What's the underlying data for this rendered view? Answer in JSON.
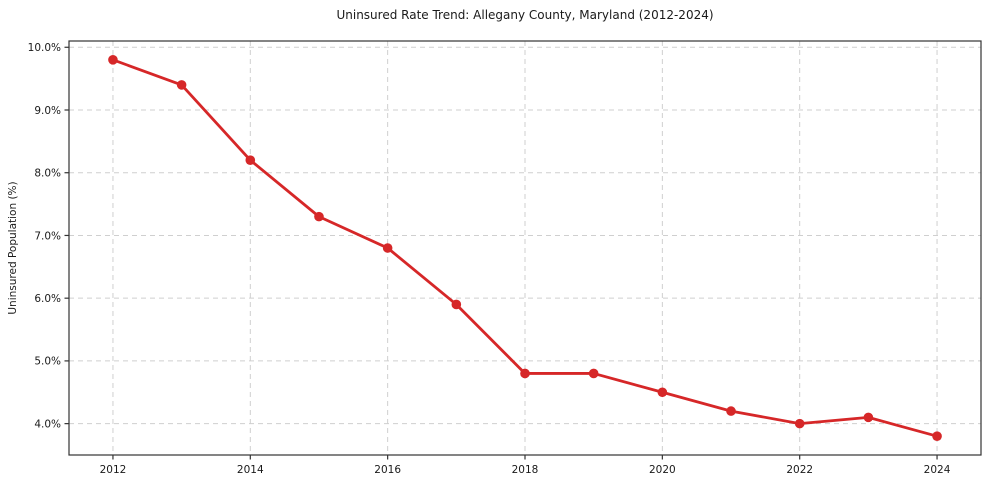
{
  "chart_data": {
    "type": "line",
    "title": "Uninsured Rate Trend: Allegany County, Maryland (2012-2024)",
    "xlabel": "",
    "ylabel": "Uninsured Population (%)",
    "x": [
      2012,
      2013,
      2014,
      2015,
      2016,
      2017,
      2018,
      2019,
      2020,
      2021,
      2022,
      2023,
      2024
    ],
    "values": [
      9.8,
      9.4,
      8.2,
      7.3,
      6.8,
      5.9,
      4.8,
      4.8,
      4.5,
      4.2,
      4.0,
      4.1,
      3.8
    ],
    "line_color": "#d62728",
    "marker": "circle",
    "grid": true,
    "legend_position": "none",
    "xlim": [
      2011.36,
      2024.64
    ],
    "ylim": [
      3.5,
      10.1
    ],
    "xticks": [
      {
        "v": 2012,
        "label": "2012"
      },
      {
        "v": 2014,
        "label": "2014"
      },
      {
        "v": 2016,
        "label": "2016"
      },
      {
        "v": 2018,
        "label": "2018"
      },
      {
        "v": 2020,
        "label": "2020"
      },
      {
        "v": 2022,
        "label": "2022"
      },
      {
        "v": 2024,
        "label": "2024"
      }
    ],
    "yticks": [
      {
        "v": 4.0,
        "label": "4.0%"
      },
      {
        "v": 5.0,
        "label": "5.0%"
      },
      {
        "v": 6.0,
        "label": "6.0%"
      },
      {
        "v": 7.0,
        "label": "7.0%"
      },
      {
        "v": 8.0,
        "label": "8.0%"
      },
      {
        "v": 9.0,
        "label": "9.0%"
      },
      {
        "v": 10.0,
        "label": "10.0%"
      }
    ]
  }
}
